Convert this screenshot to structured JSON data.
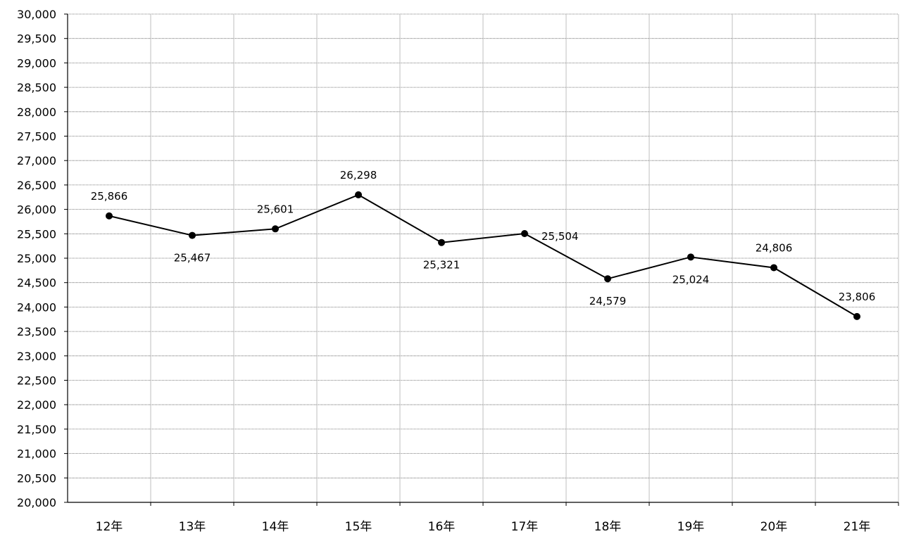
{
  "chart_data": {
    "type": "line",
    "categories": [
      "12年",
      "13年",
      "14年",
      "15年",
      "16年",
      "17年",
      "18年",
      "19年",
      "20年",
      "21年"
    ],
    "series": [
      {
        "values": [
          25866,
          25467,
          25601,
          26298,
          25321,
          25504,
          24579,
          25024,
          24806,
          23806
        ],
        "data_labels": [
          "25,866",
          "25,467",
          "25,601",
          "26,298",
          "25,321",
          "25,504",
          "24,579",
          "25,024",
          "24,806",
          "23,806"
        ],
        "label_positions": [
          "above",
          "below",
          "above",
          "above",
          "below",
          "right",
          "below",
          "below",
          "above",
          "above"
        ],
        "color": "#000000"
      }
    ],
    "ylim": [
      20000,
      30000
    ],
    "ytick_step": 500,
    "yticks": [
      "20,000",
      "20,500",
      "21,000",
      "21,500",
      "22,000",
      "22,500",
      "23,000",
      "23,500",
      "24,000",
      "24,500",
      "25,000",
      "25,500",
      "26,000",
      "26,500",
      "27,000",
      "27,500",
      "28,000",
      "28,500",
      "29,000",
      "29,500",
      "30,000"
    ],
    "grid": true,
    "legend": "none",
    "title": "",
    "xlabel": "",
    "ylabel": "",
    "colors": {
      "line": "#000000",
      "grid_horizontal": "#555555",
      "grid_vertical": "#bfbfbf",
      "axis": "#000000"
    }
  }
}
